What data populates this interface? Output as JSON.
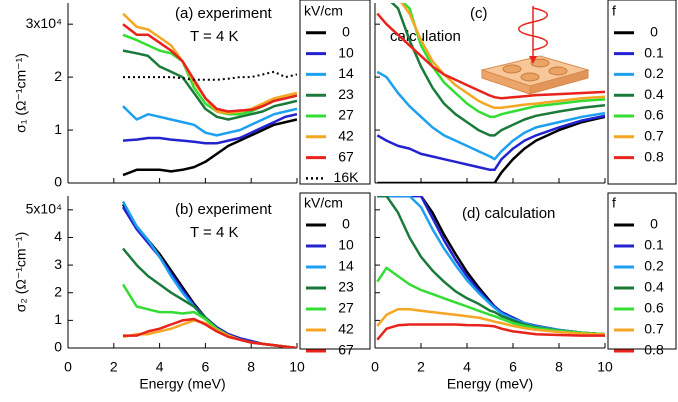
{
  "chart_data": [
    {
      "type": "line",
      "annotations": [
        "(a) experiment",
        "T = 4 K"
      ],
      "ylabel": "σ₁ (Ω⁻¹cm⁻¹)",
      "legend_title": "kV/cm",
      "xlim": [
        0,
        10
      ],
      "xticks": [
        0,
        2,
        4,
        6,
        8,
        10
      ],
      "ylim": [
        0,
        3.4
      ],
      "yticks": [
        0,
        1,
        2,
        {
          "value": 3,
          "label": "3x10⁴"
        }
      ],
      "x": [
        2.4,
        3,
        3.5,
        4,
        4.5,
        5,
        5.5,
        6,
        6.5,
        7,
        7.5,
        8,
        8.5,
        9,
        9.5,
        10
      ],
      "series": [
        {
          "name": "0",
          "color": "#000000",
          "values": [
            0.15,
            0.25,
            0.25,
            0.25,
            0.22,
            0.25,
            0.3,
            0.4,
            0.55,
            0.7,
            0.8,
            0.9,
            1.0,
            1.1,
            1.15,
            1.2
          ]
        },
        {
          "name": "10",
          "color": "#2323d0",
          "values": [
            0.8,
            0.82,
            0.85,
            0.85,
            0.82,
            0.8,
            0.78,
            0.75,
            0.75,
            0.8,
            0.85,
            0.95,
            1.05,
            1.15,
            1.25,
            1.3
          ]
        },
        {
          "name": "14",
          "color": "#1ea0f0",
          "values": [
            1.45,
            1.2,
            1.3,
            1.25,
            1.2,
            1.15,
            1.1,
            0.95,
            0.9,
            0.95,
            1.0,
            1.1,
            1.2,
            1.3,
            1.35,
            1.4
          ]
        },
        {
          "name": "23",
          "color": "#1a7a3a",
          "values": [
            2.5,
            2.45,
            2.4,
            2.2,
            2.1,
            2.0,
            1.7,
            1.4,
            1.25,
            1.2,
            1.25,
            1.3,
            1.35,
            1.45,
            1.5,
            1.55
          ]
        },
        {
          "name": "27",
          "color": "#33dd33",
          "values": [
            2.8,
            2.7,
            2.6,
            2.5,
            2.45,
            2.3,
            1.8,
            1.5,
            1.35,
            1.3,
            1.3,
            1.35,
            1.45,
            1.55,
            1.6,
            1.65
          ]
        },
        {
          "name": "42",
          "color": "#f5a623",
          "values": [
            3.2,
            2.95,
            2.9,
            2.75,
            2.6,
            2.3,
            1.9,
            1.6,
            1.35,
            1.32,
            1.35,
            1.4,
            1.5,
            1.6,
            1.65,
            1.7
          ]
        },
        {
          "name": "67",
          "color": "#e8231c",
          "values": [
            3.0,
            2.8,
            2.8,
            2.65,
            2.5,
            2.3,
            1.95,
            1.6,
            1.4,
            1.35,
            1.37,
            1.38,
            1.45,
            1.55,
            1.6,
            1.65
          ]
        },
        {
          "name": "16K",
          "color": "#000000",
          "dash": "dotted",
          "values": [
            2.0,
            2.0,
            2.0,
            2.0,
            2.0,
            1.98,
            1.95,
            1.95,
            1.95,
            1.97,
            2.0,
            2.0,
            2.05,
            2.1,
            2.0,
            2.05
          ]
        }
      ]
    },
    {
      "type": "line",
      "annotations": [
        "(c)",
        "calculation"
      ],
      "legend_title": "f",
      "xlim": [
        0,
        10
      ],
      "xticks": [
        0,
        2,
        4,
        6,
        8,
        10
      ],
      "ylim": [
        0,
        3.4
      ],
      "yticks": [
        0,
        1,
        2,
        3
      ],
      "x": [
        0.1,
        0.5,
        1,
        1.5,
        2,
        2.5,
        3,
        3.5,
        4,
        4.5,
        5,
        5.2,
        5.5,
        6,
        6.5,
        7,
        8,
        9,
        10
      ],
      "series": [
        {
          "name": "0",
          "color": "#000000",
          "values": [
            0,
            0,
            0,
            0,
            0,
            0,
            0,
            0,
            0,
            0,
            0,
            0,
            0.2,
            0.45,
            0.65,
            0.8,
            1.0,
            1.15,
            1.25
          ]
        },
        {
          "name": "0.1",
          "color": "#2323d0",
          "values": [
            0.9,
            0.8,
            0.7,
            0.65,
            0.55,
            0.5,
            0.45,
            0.4,
            0.35,
            0.3,
            0.25,
            0.25,
            0.45,
            0.65,
            0.8,
            0.9,
            1.05,
            1.18,
            1.27
          ]
        },
        {
          "name": "0.2",
          "color": "#1ea0f0",
          "values": [
            2.1,
            2.0,
            1.7,
            1.45,
            1.25,
            1.05,
            0.9,
            0.8,
            0.7,
            0.6,
            0.5,
            0.45,
            0.6,
            0.8,
            0.95,
            1.05,
            1.15,
            1.25,
            1.32
          ]
        },
        {
          "name": "0.4",
          "color": "#1a7a3a",
          "values": [
            3.5,
            3.5,
            3.3,
            2.7,
            2.2,
            1.8,
            1.5,
            1.3,
            1.15,
            1.0,
            0.9,
            0.9,
            1.0,
            1.1,
            1.2,
            1.27,
            1.35,
            1.42,
            1.47
          ]
        },
        {
          "name": "0.6",
          "color": "#33dd33",
          "values": [
            3.5,
            3.5,
            3.5,
            3.3,
            2.6,
            2.2,
            1.9,
            1.7,
            1.5,
            1.35,
            1.25,
            1.25,
            1.3,
            1.35,
            1.4,
            1.45,
            1.5,
            1.55,
            1.58
          ]
        },
        {
          "name": "0.7",
          "color": "#f5a623",
          "values": [
            3.5,
            3.5,
            3.5,
            3.2,
            2.7,
            2.3,
            2.05,
            1.85,
            1.7,
            1.55,
            1.45,
            1.42,
            1.42,
            1.45,
            1.48,
            1.5,
            1.55,
            1.6,
            1.63
          ]
        },
        {
          "name": "0.8",
          "color": "#e8231c",
          "values": [
            3.2,
            3.0,
            2.8,
            2.6,
            2.4,
            2.2,
            2.05,
            1.95,
            1.85,
            1.75,
            1.65,
            1.62,
            1.6,
            1.62,
            1.64,
            1.66,
            1.68,
            1.7,
            1.72
          ]
        }
      ]
    },
    {
      "type": "line",
      "annotations": [
        "(b) experiment",
        "T = 4 K"
      ],
      "ylabel": "σ₂ (Ω⁻¹cm⁻¹)",
      "xlabel": "Energy (meV)",
      "legend_title": "kV/cm",
      "xlim": [
        0,
        10
      ],
      "xticks": [
        0,
        2,
        4,
        6,
        8,
        10
      ],
      "ylim": [
        0,
        5.5
      ],
      "yticks": [
        0,
        1,
        2,
        3,
        4,
        {
          "value": 5,
          "label": "5x10⁴"
        }
      ],
      "x": [
        2.4,
        3,
        3.5,
        4,
        4.5,
        5,
        5.5,
        6,
        6.5,
        7,
        7.5,
        8,
        8.5,
        9,
        9.5,
        10
      ],
      "series": [
        {
          "name": "0",
          "color": "#000000",
          "values": [
            5.2,
            4.4,
            3.9,
            3.4,
            2.8,
            2.2,
            1.6,
            1.1,
            0.75,
            0.5,
            0.35,
            0.25,
            0.15,
            0.1,
            0.05,
            0.0
          ]
        },
        {
          "name": "10",
          "color": "#2323d0",
          "values": [
            5.1,
            4.3,
            3.8,
            3.3,
            2.7,
            2.1,
            1.55,
            1.1,
            0.75,
            0.5,
            0.35,
            0.25,
            0.15,
            0.1,
            0.05,
            0.0
          ]
        },
        {
          "name": "14",
          "color": "#1ea0f0",
          "values": [
            5.3,
            4.4,
            3.9,
            3.3,
            2.6,
            2.0,
            1.5,
            1.05,
            0.7,
            0.45,
            0.3,
            0.2,
            0.15,
            0.1,
            0.05,
            0.0
          ]
        },
        {
          "name": "23",
          "color": "#1a7a3a",
          "values": [
            3.6,
            3.0,
            2.6,
            2.3,
            2.0,
            1.75,
            1.5,
            1.1,
            0.7,
            0.45,
            0.3,
            0.2,
            0.15,
            0.1,
            0.05,
            0.0
          ]
        },
        {
          "name": "27",
          "color": "#33dd33",
          "values": [
            2.3,
            1.5,
            1.4,
            1.3,
            1.3,
            1.25,
            1.3,
            1.05,
            0.7,
            0.45,
            0.3,
            0.2,
            0.15,
            0.1,
            0.05,
            0.0
          ]
        },
        {
          "name": "42",
          "color": "#f5a623",
          "values": [
            0.4,
            0.5,
            0.5,
            0.6,
            0.7,
            0.85,
            1.0,
            0.9,
            0.65,
            0.45,
            0.3,
            0.2,
            0.15,
            0.1,
            0.05,
            0.0
          ]
        },
        {
          "name": "67",
          "color": "#e8231c",
          "values": [
            0.45,
            0.45,
            0.6,
            0.7,
            0.85,
            1.0,
            1.05,
            0.85,
            0.6,
            0.4,
            0.3,
            0.2,
            0.15,
            0.1,
            0.05,
            0.0
          ]
        }
      ]
    },
    {
      "type": "line",
      "annotations": [
        "(d) calculation"
      ],
      "xlabel": "Energy (meV)",
      "legend_title": "f",
      "xlim": [
        0,
        10
      ],
      "xticks": [
        0,
        2,
        4,
        6,
        8,
        10
      ],
      "ylim": [
        0,
        5.5
      ],
      "yticks": [
        0,
        1,
        2,
        3,
        4,
        5
      ],
      "x": [
        0.1,
        0.5,
        1,
        1.5,
        2,
        2.5,
        3,
        3.5,
        4,
        4.5,
        5,
        5.2,
        5.5,
        6,
        6.5,
        7,
        8,
        9,
        10
      ],
      "series": [
        {
          "name": "0",
          "color": "#000000",
          "values": [
            5.5,
            5.5,
            5.5,
            5.5,
            5.5,
            4.9,
            4.1,
            3.4,
            2.75,
            2.2,
            1.7,
            1.5,
            1.3,
            1.1,
            0.9,
            0.8,
            0.65,
            0.55,
            0.5
          ]
        },
        {
          "name": "0.1",
          "color": "#2323d0",
          "values": [
            5.5,
            5.5,
            5.5,
            5.5,
            5.5,
            4.7,
            3.9,
            3.2,
            2.6,
            2.1,
            1.65,
            1.5,
            1.3,
            1.1,
            0.9,
            0.8,
            0.65,
            0.55,
            0.5
          ]
        },
        {
          "name": "0.2",
          "color": "#1ea0f0",
          "values": [
            5.5,
            5.5,
            5.5,
            5.5,
            5.1,
            4.3,
            3.6,
            3.0,
            2.45,
            2.0,
            1.6,
            1.45,
            1.25,
            1.05,
            0.9,
            0.78,
            0.65,
            0.55,
            0.5
          ]
        },
        {
          "name": "0.4",
          "color": "#1a7a3a",
          "values": [
            5.5,
            5.5,
            4.9,
            4.0,
            3.3,
            2.8,
            2.4,
            2.05,
            1.8,
            1.6,
            1.35,
            1.3,
            1.15,
            1.0,
            0.85,
            0.75,
            0.63,
            0.55,
            0.5
          ]
        },
        {
          "name": "0.6",
          "color": "#33dd33",
          "values": [
            2.4,
            2.9,
            2.6,
            2.3,
            2.1,
            1.95,
            1.8,
            1.65,
            1.5,
            1.35,
            1.2,
            1.15,
            1.05,
            0.9,
            0.8,
            0.72,
            0.62,
            0.55,
            0.5
          ]
        },
        {
          "name": "0.7",
          "color": "#f5a623",
          "values": [
            0.8,
            1.2,
            1.4,
            1.4,
            1.35,
            1.3,
            1.25,
            1.2,
            1.15,
            1.1,
            1.0,
            0.95,
            0.9,
            0.8,
            0.72,
            0.66,
            0.58,
            0.52,
            0.5
          ]
        },
        {
          "name": "0.8",
          "color": "#e8231c",
          "values": [
            0.3,
            0.7,
            0.82,
            0.85,
            0.85,
            0.85,
            0.85,
            0.85,
            0.83,
            0.82,
            0.8,
            0.78,
            0.7,
            0.6,
            0.55,
            0.5,
            0.47,
            0.45,
            0.45
          ]
        }
      ]
    }
  ]
}
